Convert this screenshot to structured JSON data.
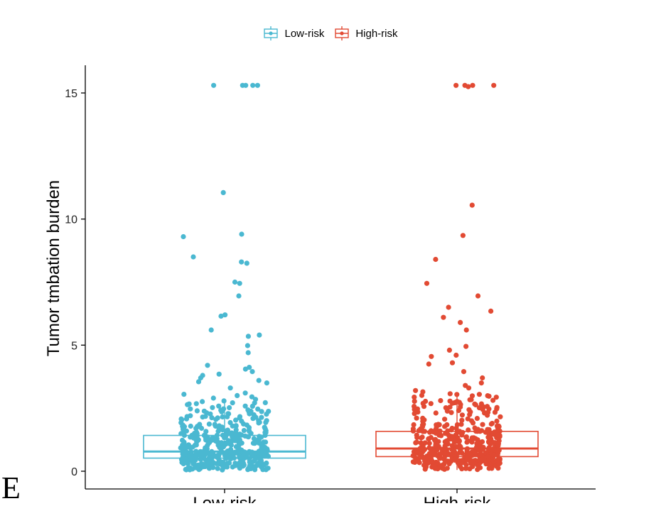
{
  "panel_letter": "E",
  "legend": [
    {
      "label": "Low-risk",
      "color": "#4ab8d1"
    },
    {
      "label": "High-risk",
      "color": "#e24a33"
    }
  ],
  "chart_data": {
    "type": "box",
    "title": "",
    "xlabel": "",
    "ylabel": "Tumor tmbation burden",
    "ylim": [
      -0.7,
      16.1
    ],
    "yticks": [
      0,
      5,
      10,
      15
    ],
    "categories": [
      "Low-risk",
      "High-risk"
    ],
    "grid": false,
    "legend_position": "top",
    "series": [
      {
        "name": "Low-risk",
        "color": "#4ab8d1",
        "box": {
          "whisker_low": 0.05,
          "q1": 0.52,
          "median": 0.78,
          "q3": 1.42,
          "whisker_high": 2.8
        },
        "outliers": [
          15.3,
          15.3,
          15.3,
          15.3,
          15.3,
          11.05,
          9.4,
          9.3,
          8.5,
          8.3,
          8.25,
          7.5,
          7.45,
          6.95,
          6.2,
          6.15,
          5.6,
          5.4,
          5.35,
          4.98,
          4.7,
          4.2,
          4.12,
          4.05,
          3.95,
          3.85,
          3.8,
          3.7,
          3.6,
          3.55,
          3.5,
          3.3,
          3.1,
          3.05,
          3.0,
          2.95,
          2.9,
          2.85
        ]
      },
      {
        "name": "High-risk",
        "color": "#e24a33",
        "box": {
          "whisker_low": 0.05,
          "q1": 0.58,
          "median": 0.9,
          "q3": 1.58,
          "whisker_high": 3.1
        },
        "outliers": [
          15.3,
          15.3,
          15.3,
          15.3,
          15.25,
          10.55,
          9.35,
          8.4,
          7.45,
          6.95,
          6.5,
          6.35,
          6.1,
          5.9,
          5.6,
          4.95,
          4.8,
          4.6,
          4.55,
          4.3,
          4.25,
          3.95,
          3.7,
          3.5,
          3.4,
          3.3,
          3.2,
          3.15
        ]
      }
    ]
  }
}
